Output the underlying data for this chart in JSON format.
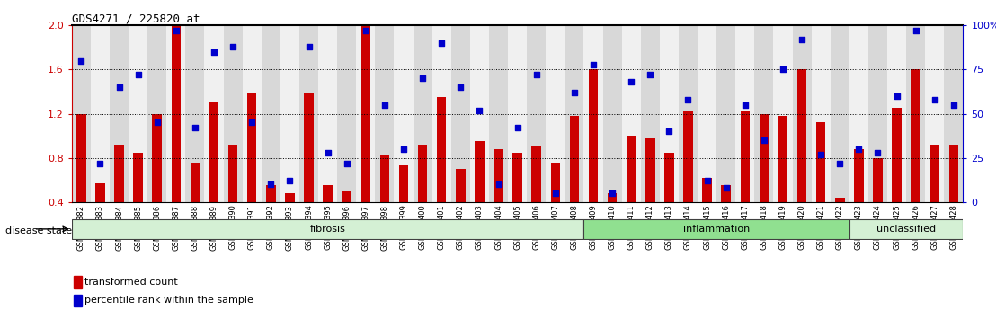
{
  "title": "GDS4271 / 225820_at",
  "samples": [
    "GSM380382",
    "GSM380383",
    "GSM380384",
    "GSM380385",
    "GSM380386",
    "GSM380387",
    "GSM380388",
    "GSM380389",
    "GSM380390",
    "GSM380391",
    "GSM380392",
    "GSM380393",
    "GSM380394",
    "GSM380395",
    "GSM380396",
    "GSM380397",
    "GSM380398",
    "GSM380399",
    "GSM380400",
    "GSM380401",
    "GSM380402",
    "GSM380403",
    "GSM380404",
    "GSM380405",
    "GSM380406",
    "GSM380407",
    "GSM380408",
    "GSM380409",
    "GSM380410",
    "GSM380411",
    "GSM380412",
    "GSM380413",
    "GSM380414",
    "GSM380415",
    "GSM380416",
    "GSM380417",
    "GSM380418",
    "GSM380419",
    "GSM380420",
    "GSM380421",
    "GSM380422",
    "GSM380423",
    "GSM380424",
    "GSM380425",
    "GSM380426",
    "GSM380427",
    "GSM380428"
  ],
  "transformed_count": [
    1.2,
    0.57,
    0.92,
    0.85,
    1.2,
    2.0,
    0.75,
    1.3,
    0.92,
    1.38,
    0.55,
    0.48,
    1.38,
    0.55,
    0.5,
    2.0,
    0.82,
    0.73,
    0.92,
    1.35,
    0.7,
    0.95,
    0.88,
    0.85,
    0.9,
    0.75,
    1.18,
    1.6,
    0.48,
    1.0,
    0.98,
    0.85,
    1.22,
    0.62,
    0.55,
    1.22,
    1.2,
    1.18,
    1.6,
    1.12,
    0.44,
    0.88,
    0.8,
    1.25,
    1.6,
    0.92,
    0.92
  ],
  "percentile_rank": [
    80,
    22,
    65,
    72,
    45,
    97,
    42,
    85,
    88,
    45,
    10,
    12,
    88,
    28,
    22,
    97,
    55,
    30,
    70,
    90,
    65,
    52,
    10,
    42,
    72,
    5,
    62,
    78,
    5,
    68,
    72,
    40,
    58,
    12,
    8,
    55,
    35,
    75,
    92,
    27,
    22,
    30,
    28,
    60,
    97,
    58,
    55
  ],
  "groups": [
    {
      "label": "fibrosis",
      "start": 0,
      "end": 27,
      "color": "#d4f0d4"
    },
    {
      "label": "inflammation",
      "start": 27,
      "end": 41,
      "color": "#90e090"
    },
    {
      "label": "unclassified",
      "start": 41,
      "end": 47,
      "color": "#d4f0d4"
    }
  ],
  "bar_color": "#cc0000",
  "dot_color": "#0000cc",
  "ylim_left": [
    0.4,
    2.0
  ],
  "ylim_right": [
    0,
    100
  ],
  "yticks_left": [
    0.4,
    0.8,
    1.2,
    1.6,
    2.0
  ],
  "yticks_right": [
    0,
    25,
    50,
    75,
    100
  ],
  "hlines": [
    0.8,
    1.2,
    1.6
  ],
  "bg_color": "#ffffff",
  "col_bg_even": "#d8d8d8",
  "col_bg_odd": "#f0f0f0",
  "disease_state_label": "disease state",
  "legend_items": [
    {
      "label": "transformed count",
      "color": "#cc0000"
    },
    {
      "label": "percentile rank within the sample",
      "color": "#0000cc"
    }
  ]
}
